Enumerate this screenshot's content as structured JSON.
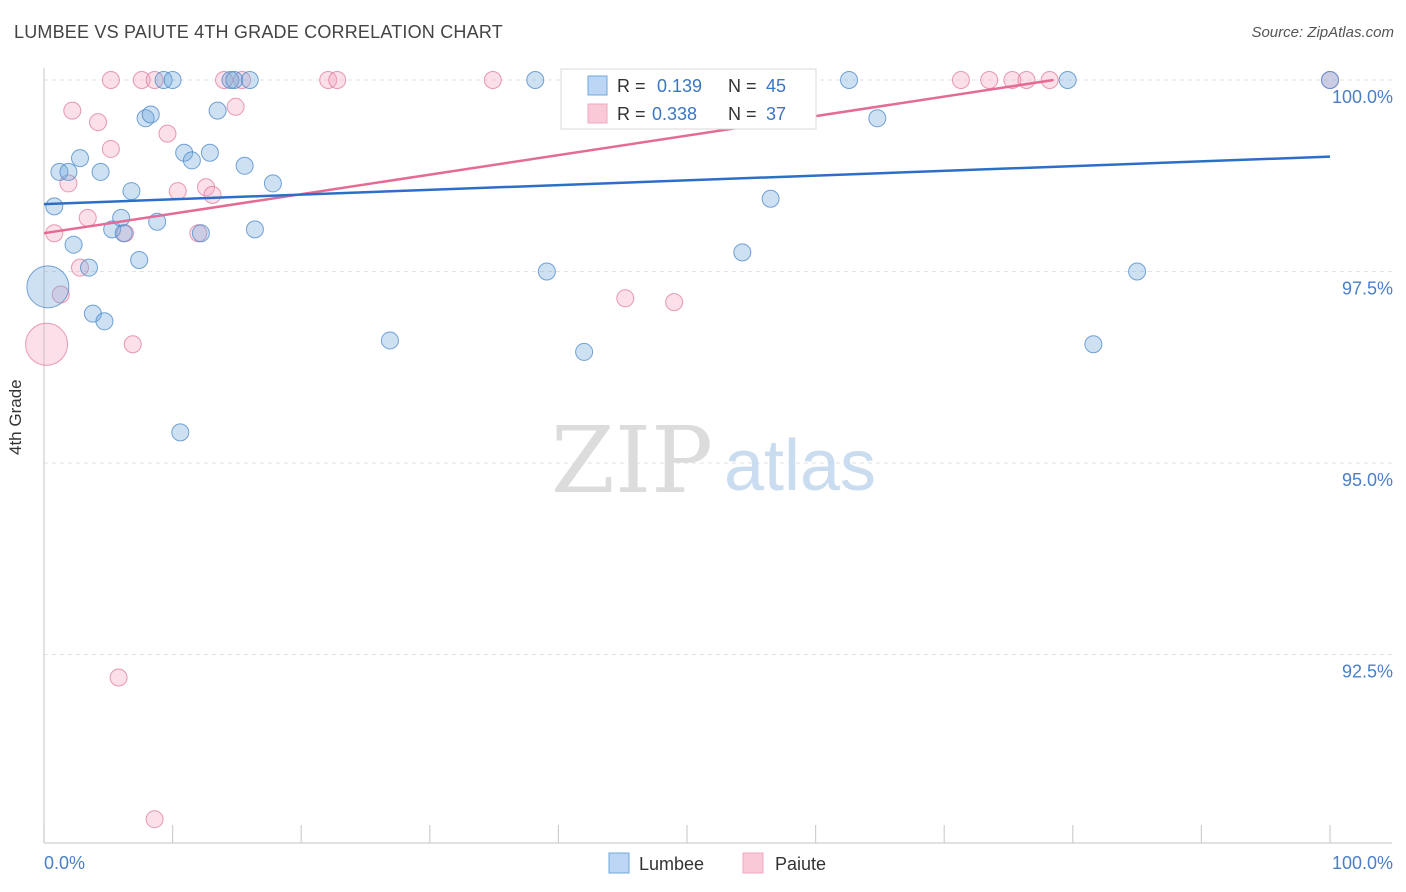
{
  "header": {
    "title": "LUMBEE VS PAIUTE 4TH GRADE CORRELATION CHART",
    "source": "Source: ZipAtlas.com"
  },
  "watermark": {
    "zip": "ZIP",
    "atlas": "atlas"
  },
  "legend_box": {
    "rows": [
      {
        "r_label": "R =",
        "r_value": "0.139",
        "n_label": "N =",
        "n_value": "45",
        "color": "#6fa8dc"
      },
      {
        "r_label": "R =",
        "r_value": "0.338",
        "n_label": "N =",
        "n_value": "37",
        "color": "#f4a7bf"
      }
    ]
  },
  "chart_data": {
    "type": "scatter",
    "title": "LUMBEE VS PAIUTE 4TH GRADE CORRELATION CHART",
    "xlabel": "",
    "ylabel": "4th Grade",
    "xlim": [
      0,
      100
    ],
    "ylim": [
      90.2,
      100.3
    ],
    "x_tick_labels": [
      "0.0%",
      "100.0%"
    ],
    "y_ticks": [
      100.0,
      97.5,
      95.0,
      92.5
    ],
    "y_tick_labels": [
      "100.0%",
      "97.5%",
      "95.0%",
      "92.5%"
    ],
    "grid": true,
    "legend_position": "bottom-center",
    "series": [
      {
        "name": "Lumbee",
        "color": "#6fa8dc",
        "stroke": "#4a86c8",
        "trend": {
          "x": [
            0,
            100
          ],
          "y": [
            98.38,
            99.0
          ]
        },
        "points": [
          {
            "x": 0.3,
            "y": 97.3,
            "big": true
          },
          {
            "x": 0.8,
            "y": 98.35
          },
          {
            "x": 1.2,
            "y": 98.8
          },
          {
            "x": 1.9,
            "y": 98.8
          },
          {
            "x": 2.3,
            "y": 97.85
          },
          {
            "x": 2.8,
            "y": 98.98
          },
          {
            "x": 3.5,
            "y": 97.55
          },
          {
            "x": 3.8,
            "y": 96.95
          },
          {
            "x": 4.4,
            "y": 98.8
          },
          {
            "x": 4.7,
            "y": 96.85
          },
          {
            "x": 5.3,
            "y": 98.05
          },
          {
            "x": 6.0,
            "y": 98.2
          },
          {
            "x": 6.2,
            "y": 98.0
          },
          {
            "x": 6.8,
            "y": 98.55
          },
          {
            "x": 7.4,
            "y": 97.65
          },
          {
            "x": 7.9,
            "y": 99.5
          },
          {
            "x": 8.3,
            "y": 99.55
          },
          {
            "x": 8.8,
            "y": 98.15
          },
          {
            "x": 9.3,
            "y": 100.0
          },
          {
            "x": 10.0,
            "y": 100.0
          },
          {
            "x": 10.6,
            "y": 95.4
          },
          {
            "x": 10.9,
            "y": 99.05
          },
          {
            "x": 11.5,
            "y": 98.95
          },
          {
            "x": 12.2,
            "y": 98.0
          },
          {
            "x": 12.9,
            "y": 99.05
          },
          {
            "x": 13.5,
            "y": 99.6
          },
          {
            "x": 14.5,
            "y": 100.0
          },
          {
            "x": 15.6,
            "y": 98.88
          },
          {
            "x": 16.4,
            "y": 98.05
          },
          {
            "x": 17.8,
            "y": 98.65
          },
          {
            "x": 14.8,
            "y": 100.0
          },
          {
            "x": 26.9,
            "y": 96.6
          },
          {
            "x": 38.2,
            "y": 100.0
          },
          {
            "x": 39.1,
            "y": 97.5
          },
          {
            "x": 42.0,
            "y": 96.45
          },
          {
            "x": 48.2,
            "y": 100.0
          },
          {
            "x": 54.3,
            "y": 97.75
          },
          {
            "x": 56.5,
            "y": 98.45
          },
          {
            "x": 62.6,
            "y": 100.0
          },
          {
            "x": 64.8,
            "y": 99.5
          },
          {
            "x": 79.6,
            "y": 100.0
          },
          {
            "x": 81.6,
            "y": 96.55
          },
          {
            "x": 85.0,
            "y": 97.5
          },
          {
            "x": 100.0,
            "y": 100.0
          },
          {
            "x": 16.0,
            "y": 100.0
          }
        ]
      },
      {
        "name": "Paiute",
        "color": "#f4a7bf",
        "stroke": "#e07a9c",
        "trend": {
          "x": [
            0,
            78.5
          ],
          "y": [
            98.0,
            100.0
          ]
        },
        "points": [
          {
            "x": 0.2,
            "y": 96.55,
            "big": true
          },
          {
            "x": 0.8,
            "y": 98.0
          },
          {
            "x": 1.3,
            "y": 97.2
          },
          {
            "x": 1.9,
            "y": 98.65
          },
          {
            "x": 2.2,
            "y": 99.6
          },
          {
            "x": 2.8,
            "y": 97.55
          },
          {
            "x": 3.4,
            "y": 98.2
          },
          {
            "x": 4.2,
            "y": 99.45
          },
          {
            "x": 5.2,
            "y": 99.1
          },
          {
            "x": 5.2,
            "y": 100.0
          },
          {
            "x": 5.8,
            "y": 92.2
          },
          {
            "x": 6.3,
            "y": 98.0
          },
          {
            "x": 6.9,
            "y": 96.55
          },
          {
            "x": 7.6,
            "y": 100.0
          },
          {
            "x": 8.6,
            "y": 100.0
          },
          {
            "x": 9.6,
            "y": 99.3
          },
          {
            "x": 10.4,
            "y": 98.55
          },
          {
            "x": 12.0,
            "y": 98.0
          },
          {
            "x": 12.6,
            "y": 98.6
          },
          {
            "x": 13.1,
            "y": 98.5
          },
          {
            "x": 14.0,
            "y": 100.0
          },
          {
            "x": 14.9,
            "y": 99.65
          },
          {
            "x": 15.4,
            "y": 100.0
          },
          {
            "x": 22.1,
            "y": 100.0
          },
          {
            "x": 22.8,
            "y": 100.0
          },
          {
            "x": 34.9,
            "y": 100.0
          },
          {
            "x": 45.2,
            "y": 97.15
          },
          {
            "x": 45.8,
            "y": 100.0
          },
          {
            "x": 49.0,
            "y": 97.1
          },
          {
            "x": 71.3,
            "y": 100.0
          },
          {
            "x": 73.5,
            "y": 100.0
          },
          {
            "x": 75.3,
            "y": 100.0
          },
          {
            "x": 76.4,
            "y": 100.0
          },
          {
            "x": 78.2,
            "y": 100.0
          },
          {
            "x": 100.0,
            "y": 100.0
          },
          {
            "x": 8.6,
            "y": 90.35
          },
          {
            "x": 44.6,
            "y": 100.0
          }
        ]
      }
    ]
  }
}
